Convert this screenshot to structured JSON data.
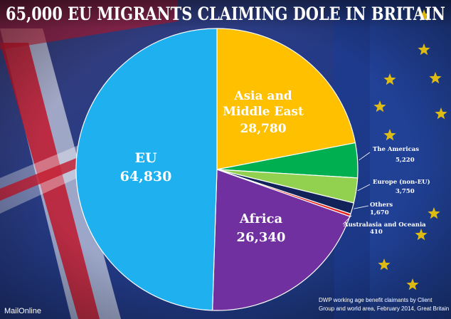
{
  "title": "65,000 EU MIGRANTS CLAIMING DOLE IN BRITAIN",
  "source_line1": "DWP working age benefit claimants by Client",
  "source_line2": "Group and world area, February 2014, Great Britain",
  "brand": "MailOnline",
  "colors": {
    "title_text": "#ffffff",
    "background_blue": "#1c2f6e",
    "flag_red": "#c0162b"
  },
  "chart_data": {
    "type": "pie",
    "start_angle_deg": 0,
    "direction": "clockwise",
    "slices": [
      {
        "label_lines": [
          "Asia and",
          "Middle East"
        ],
        "value_text": "28,780",
        "value": 28780,
        "color": "#ffc000",
        "label_style": "inside"
      },
      {
        "label_lines": [
          "The Americas"
        ],
        "value_text": "5,220",
        "value": 5220,
        "color": "#00b050",
        "label_style": "outside"
      },
      {
        "label_lines": [
          "Europe (non-EU)"
        ],
        "value_text": "3,750",
        "value": 3750,
        "color": "#92d050",
        "label_style": "outside"
      },
      {
        "label_lines": [
          "Others"
        ],
        "value_text": "1,670",
        "value": 1670,
        "color": "#12235a",
        "label_style": "outside"
      },
      {
        "label_lines": [
          "Australasia and Oceania"
        ],
        "value_text": "410",
        "value": 410,
        "color": "#e8231a",
        "label_style": "outside"
      },
      {
        "label_lines": [
          "Africa"
        ],
        "value_text": "26,340",
        "value": 26340,
        "color": "#7030a0",
        "label_style": "inside"
      },
      {
        "label_lines": [
          "EU"
        ],
        "value_text": "64,830",
        "value": 64830,
        "color": "#1fb0ef",
        "label_style": "inside"
      }
    ]
  }
}
